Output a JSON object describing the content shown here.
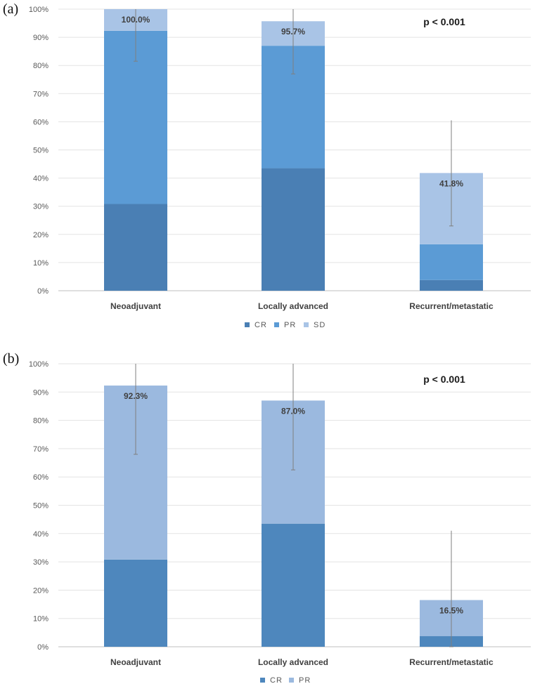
{
  "chart_data": [
    {
      "panel_label": "(a)",
      "type": "bar",
      "stacked": true,
      "categories": [
        "Neoadjuvant",
        "Locally advanced",
        "Recurrent/metastatic"
      ],
      "series": [
        {
          "name": "CR",
          "values": [
            30.8,
            43.5,
            3.8
          ],
          "color": "#4a7fb4"
        },
        {
          "name": "PR",
          "values": [
            61.5,
            43.5,
            12.7
          ],
          "color": "#5b9bd5"
        },
        {
          "name": "SD",
          "values": [
            7.7,
            8.7,
            25.3
          ],
          "color": "#a9c4e6"
        }
      ],
      "totals": [
        100.0,
        95.7,
        41.8
      ],
      "total_labels": [
        "100.0%",
        "95.7%",
        "41.8%"
      ],
      "error_bars": [
        [
          81.5,
          100
        ],
        [
          77,
          100
        ],
        [
          23,
          60.5
        ]
      ],
      "annotation": "p < 0.001",
      "ylim": [
        0,
        100
      ],
      "yticks": [
        "0%",
        "10%",
        "20%",
        "30%",
        "40%",
        "50%",
        "60%",
        "70%",
        "80%",
        "90%",
        "100%"
      ],
      "grid": true,
      "legend": "bottom"
    },
    {
      "panel_label": "(b)",
      "type": "bar",
      "stacked": true,
      "categories": [
        "Neoadjuvant",
        "Locally advanced",
        "Recurrent/metastatic"
      ],
      "series": [
        {
          "name": "CR",
          "values": [
            30.8,
            43.5,
            3.8
          ],
          "color": "#4e87bd"
        },
        {
          "name": "PR",
          "values": [
            61.5,
            43.5,
            12.7
          ],
          "color": "#9bb9df"
        }
      ],
      "totals": [
        92.3,
        87.0,
        16.5
      ],
      "total_labels": [
        "92.3%",
        "87.0%",
        "16.5%"
      ],
      "error_bars": [
        [
          68,
          100
        ],
        [
          62.5,
          100
        ],
        [
          0,
          41
        ]
      ],
      "annotation": "p < 0.001",
      "ylim": [
        0,
        100
      ],
      "yticks": [
        "0%",
        "10%",
        "20%",
        "30%",
        "40%",
        "50%",
        "60%",
        "70%",
        "80%",
        "90%",
        "100%"
      ],
      "grid": true,
      "legend": "bottom"
    }
  ]
}
